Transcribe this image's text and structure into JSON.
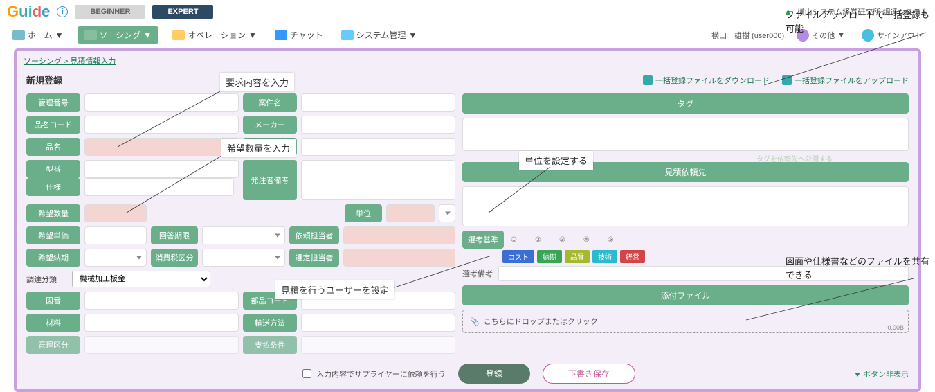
{
  "logo_text": "Guide",
  "mode": {
    "beginner": "BEGINNER",
    "expert": "EXPERT"
  },
  "company": "横山システム経営研究所 調達システム",
  "nav": {
    "home": "ホーム",
    "sourcing": "ソーシング",
    "operation": "オペレーション",
    "chat": "チャット",
    "sysadmin": "システム管理",
    "user": "横山　雄樹 (user000)",
    "other": "その他",
    "signout": "サインアウト"
  },
  "breadcrumb": "ソーシング > 見積情報入力",
  "page_title": "新規登録",
  "links": {
    "download": "一括登録ファイルをダウンロード",
    "upload": "一括登録ファイルをアップロード"
  },
  "labels": {
    "mgmt_no": "管理番号",
    "item_code": "品名コード",
    "item_name": "品名",
    "model_no": "型番",
    "spec": "仕様",
    "qty": "希望数量",
    "unit_price": "希望単価",
    "due": "希望納期",
    "reply_due": "回答期限",
    "tax": "消費税区分",
    "subject": "案件名",
    "maker": "メーカー",
    "deliver": "納入場所",
    "orderer_note": "発注者備考",
    "unit": "単位",
    "req_pic": "依頼担当者",
    "sel_pic": "選定担当者",
    "class": "調達分類",
    "drawing": "図番",
    "material": "材料",
    "mgmt_cat": "管理区分",
    "part_code": "部品コード",
    "ship": "輸送方法",
    "payment": "支払条件",
    "tag": "タグ",
    "quote_dest": "見積依頼先",
    "criteria": "選考基準",
    "sel_note": "選考備考",
    "attach": "添付ファイル",
    "publish": "タグを依頼先へ公開する"
  },
  "class_value": "機械加工板金",
  "criteria_nums": [
    "①",
    "②",
    "③",
    "④",
    "⑤"
  ],
  "criteria_tags": [
    {
      "t": "コスト",
      "c": "#3b6fd6"
    },
    {
      "t": "納期",
      "c": "#3aa655"
    },
    {
      "t": "品質",
      "c": "#a6b82e"
    },
    {
      "t": "技術",
      "c": "#2bbad0"
    },
    {
      "t": "経営",
      "c": "#d64545"
    }
  ],
  "drop_text": "こちらにドロップまたはクリック",
  "drop_size": "0.00B",
  "footer": {
    "chk": "入力内容でサプライヤーに依頼を行う",
    "register": "登録",
    "draft": "下書き保存",
    "hide": "ボタン非表示"
  },
  "annotations": {
    "a1": "要求内容を入力",
    "a2": "希望数量を入力",
    "a3": "単位を設定する",
    "a4": "見積を行うユーザーを設定",
    "a5": "ファイルアップロードで一括登録も可能",
    "a6": "図面や仕様書などのファイルを共有できる"
  }
}
